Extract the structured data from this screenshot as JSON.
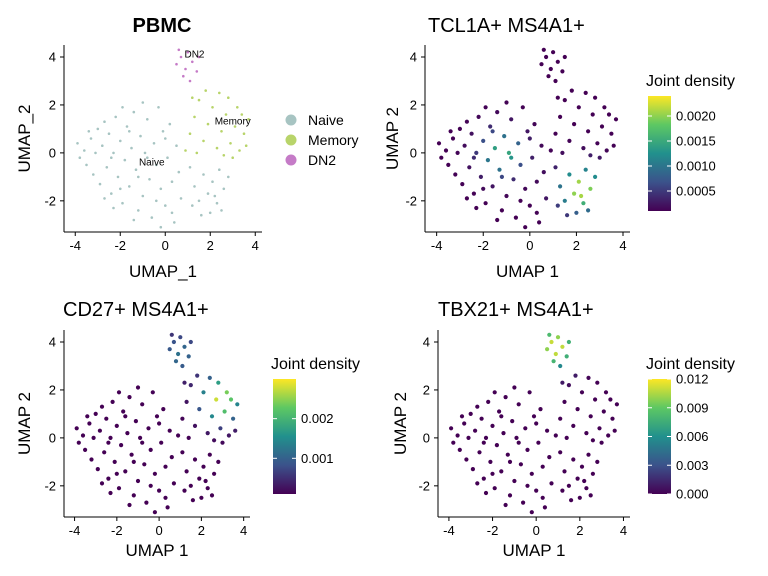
{
  "figure": {
    "palette": {
      "Naive": "#a7c4c2",
      "Memory": "#b8d46a",
      "DN2": "#c57bc7",
      "viridis": [
        "#440154",
        "#3b528b",
        "#21908d",
        "#5dc863",
        "#fde725"
      ]
    }
  },
  "chart_data": [
    {
      "type": "scatter",
      "title": "PBMC",
      "xlabel": "UMAP_1",
      "ylabel": "UMAP_2",
      "xlim": [
        -4.5,
        4.3
      ],
      "ylim": [
        -3.3,
        4.5
      ],
      "xticks": [
        -4,
        -2,
        0,
        2,
        4
      ],
      "yticks": [
        -2,
        0,
        2,
        4
      ],
      "color_by": "cluster",
      "legend": {
        "placement": "right",
        "entries": [
          {
            "name": "Naive",
            "color": "#a7c4c2"
          },
          {
            "name": "Memory",
            "color": "#b8d46a"
          },
          {
            "name": "DN2",
            "color": "#c57bc7"
          }
        ]
      },
      "cluster_labels": [
        {
          "text": "DN2",
          "x": 1.3,
          "y": 4.1
        },
        {
          "text": "Memory",
          "x": 3.0,
          "y": 1.3
        },
        {
          "text": "Naive",
          "x": -0.6,
          "y": -0.4
        }
      ],
      "points_ref": "umap_points"
    },
    {
      "type": "scatter",
      "title": "TCL1A+ MS4A1+",
      "xlabel": "UMAP 1",
      "ylabel": "UMAP 2",
      "xlim": [
        -4.5,
        4.3
      ],
      "ylim": [
        -3.3,
        4.5
      ],
      "xticks": [
        -4,
        -2,
        0,
        2,
        4
      ],
      "yticks": [
        -2,
        0,
        2,
        4
      ],
      "color_by": "joint_density",
      "colorbar": {
        "title": "Joint density",
        "range": [
          0.0001,
          0.0024
        ],
        "ticks": [
          0.0005,
          0.001,
          0.0015,
          0.002
        ],
        "tick_labels": [
          "0.0005",
          "0.0010",
          "0.0015",
          "0.0020"
        ]
      },
      "density_hotspots": [
        {
          "x": -1.2,
          "y": 0.0,
          "weight": 0.0016
        },
        {
          "x": 2.2,
          "y": -1.5,
          "weight": 0.0023
        }
      ],
      "points_ref": "umap_points"
    },
    {
      "type": "scatter",
      "title": "CD27+ MS4A1+",
      "xlabel": "UMAP 1",
      "ylabel": "UMAP 2",
      "xlim": [
        -4.5,
        4.3
      ],
      "ylim": [
        -3.3,
        4.5
      ],
      "xticks": [
        -4,
        -2,
        0,
        2,
        4
      ],
      "yticks": [
        -2,
        0,
        2,
        4
      ],
      "color_by": "joint_density",
      "colorbar": {
        "title": "Joint density",
        "range": [
          0.0001,
          0.003
        ],
        "ticks": [
          0.001,
          0.002
        ],
        "tick_labels": [
          "0.001",
          "0.002"
        ]
      },
      "density_hotspots": [
        {
          "x": 2.9,
          "y": 1.6,
          "weight": 0.0029
        },
        {
          "x": 1.0,
          "y": 3.5,
          "weight": 0.0012
        }
      ],
      "points_ref": "umap_points"
    },
    {
      "type": "scatter",
      "title": "TBX21+ MS4A1+",
      "xlabel": "UMAP 1",
      "ylabel": "UMAP 2",
      "xlim": [
        -4.5,
        4.3
      ],
      "ylim": [
        -3.3,
        4.5
      ],
      "xticks": [
        -4,
        -2,
        0,
        2,
        4
      ],
      "yticks": [
        -2,
        0,
        2,
        4
      ],
      "color_by": "joint_density",
      "colorbar": {
        "title": "Joint density",
        "range": [
          0.0,
          0.012
        ],
        "ticks": [
          0.0,
          0.003,
          0.006,
          0.009,
          0.012
        ],
        "tick_labels": [
          "0.000",
          "0.003",
          "0.006",
          "0.009",
          "0.012"
        ]
      },
      "density_hotspots": [
        {
          "x": 0.9,
          "y": 3.8,
          "weight": 0.012
        }
      ],
      "points_ref": "umap_points"
    }
  ],
  "umap_points": [
    [
      -3.8,
      -0.2,
      "Naive"
    ],
    [
      -3.6,
      0.1,
      "Naive"
    ],
    [
      -3.9,
      0.4,
      "Naive"
    ],
    [
      -3.5,
      -0.5,
      "Naive"
    ],
    [
      -3.3,
      0.6,
      "Naive"
    ],
    [
      -3.2,
      -0.9,
      "Naive"
    ],
    [
      -3.0,
      1.0,
      "Naive"
    ],
    [
      -3.1,
      0.0,
      "Naive"
    ],
    [
      -2.9,
      -1.3,
      "Naive"
    ],
    [
      -2.8,
      0.3,
      "Naive"
    ],
    [
      -2.7,
      1.3,
      "Naive"
    ],
    [
      -2.6,
      -0.6,
      "Naive"
    ],
    [
      -2.5,
      0.8,
      "Naive"
    ],
    [
      -2.4,
      -1.7,
      "Naive"
    ],
    [
      -2.3,
      0.0,
      "Naive"
    ],
    [
      -2.2,
      1.5,
      "Naive"
    ],
    [
      -2.1,
      -1.0,
      "Naive"
    ],
    [
      -2.0,
      0.5,
      "Naive"
    ],
    [
      -1.9,
      -2.1,
      "Naive"
    ],
    [
      -1.8,
      -0.3,
      "Naive"
    ],
    [
      -1.7,
      1.1,
      "Naive"
    ],
    [
      -1.6,
      -1.4,
      "Naive"
    ],
    [
      -1.5,
      0.2,
      "Naive"
    ],
    [
      -1.4,
      1.7,
      "Naive"
    ],
    [
      -1.3,
      -0.7,
      "Naive"
    ],
    [
      -1.2,
      -2.4,
      "Naive"
    ],
    [
      -1.1,
      0.7,
      "Naive"
    ],
    [
      -1.0,
      -1.8,
      "Naive"
    ],
    [
      -0.9,
      0.0,
      "Naive"
    ],
    [
      -0.8,
      1.4,
      "Naive"
    ],
    [
      -0.7,
      -1.1,
      "Naive"
    ],
    [
      -0.6,
      -2.7,
      "Naive"
    ],
    [
      -0.5,
      0.4,
      "Naive"
    ],
    [
      -0.4,
      -0.5,
      "Naive"
    ],
    [
      -0.3,
      1.9,
      "Naive"
    ],
    [
      -0.2,
      -1.5,
      "Naive"
    ],
    [
      -0.1,
      0.9,
      "Naive"
    ],
    [
      0.0,
      -2.2,
      "Naive"
    ],
    [
      0.1,
      -0.2,
      "Naive"
    ],
    [
      0.2,
      1.2,
      "Naive"
    ],
    [
      0.3,
      -1.2,
      "Naive"
    ],
    [
      0.4,
      -2.9,
      "Naive"
    ],
    [
      0.5,
      0.3,
      "Naive"
    ],
    [
      0.6,
      -0.8,
      "Naive"
    ],
    [
      0.7,
      -1.9,
      "Naive"
    ],
    [
      -2.4,
      -0.2,
      "Naive"
    ],
    [
      -2.0,
      -1.5,
      "Naive"
    ],
    [
      -1.6,
      0.9,
      "Naive"
    ],
    [
      -1.2,
      -1.0,
      "Naive"
    ],
    [
      -0.8,
      -0.2,
      "Naive"
    ],
    [
      -0.4,
      -2.0,
      "Naive"
    ],
    [
      0.0,
      0.6,
      "Naive"
    ],
    [
      -1.9,
      1.9,
      "Naive"
    ],
    [
      -1.0,
      2.1,
      "Naive"
    ],
    [
      -3.4,
      0.9,
      "Naive"
    ],
    [
      -2.7,
      -1.9,
      "Naive"
    ],
    [
      -1.4,
      -2.8,
      "Naive"
    ],
    [
      -0.2,
      -3.1,
      "Naive"
    ],
    [
      0.3,
      -2.5,
      "Naive"
    ],
    [
      -2.3,
      -2.3,
      "Naive"
    ],
    [
      1.1,
      -0.6,
      "Naive"
    ],
    [
      1.3,
      -1.4,
      "Naive"
    ],
    [
      1.5,
      -2.0,
      "Naive"
    ],
    [
      1.7,
      -0.9,
      "Naive"
    ],
    [
      1.9,
      -1.7,
      "Naive"
    ],
    [
      2.1,
      -1.2,
      "Naive"
    ],
    [
      2.3,
      -2.1,
      "Naive"
    ],
    [
      2.4,
      -0.7,
      "Naive"
    ],
    [
      2.6,
      -1.5,
      "Naive"
    ],
    [
      2.0,
      -2.5,
      "Naive"
    ],
    [
      1.6,
      -2.6,
      "Naive"
    ],
    [
      2.8,
      -1.0,
      "Naive"
    ],
    [
      2.2,
      -1.8,
      "Naive"
    ],
    [
      1.2,
      -2.2,
      "Naive"
    ],
    [
      2.5,
      -2.4,
      "Naive"
    ],
    [
      0.9,
      0.1,
      "Memory"
    ],
    [
      1.1,
      0.8,
      "Memory"
    ],
    [
      1.3,
      1.5,
      "Memory"
    ],
    [
      1.5,
      2.2,
      "Memory"
    ],
    [
      1.7,
      0.5,
      "Memory"
    ],
    [
      1.9,
      1.2,
      "Memory"
    ],
    [
      2.1,
      1.9,
      "Memory"
    ],
    [
      2.3,
      0.2,
      "Memory"
    ],
    [
      2.5,
      0.9,
      "Memory"
    ],
    [
      2.7,
      1.6,
      "Memory"
    ],
    [
      2.9,
      0.4,
      "Memory"
    ],
    [
      3.1,
      1.1,
      "Memory"
    ],
    [
      3.3,
      0.1,
      "Memory"
    ],
    [
      3.5,
      0.8,
      "Memory"
    ],
    [
      3.7,
      1.4,
      "Memory"
    ],
    [
      3.2,
      1.9,
      "Memory"
    ],
    [
      2.8,
      2.3,
      "Memory"
    ],
    [
      2.4,
      2.5,
      "Memory"
    ],
    [
      1.8,
      2.6,
      "Memory"
    ],
    [
      1.2,
      2.3,
      "Memory"
    ],
    [
      3.6,
      0.3,
      "Memory"
    ],
    [
      3.0,
      -0.2,
      "Memory"
    ],
    [
      2.6,
      -0.1,
      "Memory"
    ],
    [
      1.4,
      0.0,
      "Memory"
    ],
    [
      3.4,
      1.6,
      "Memory"
    ],
    [
      0.5,
      3.7,
      "DN2"
    ],
    [
      0.7,
      4.0,
      "DN2"
    ],
    [
      0.9,
      3.5,
      "DN2"
    ],
    [
      1.0,
      4.2,
      "DN2"
    ],
    [
      1.2,
      3.8,
      "DN2"
    ],
    [
      0.8,
      3.2,
      "DN2"
    ],
    [
      1.4,
      3.4,
      "DN2"
    ],
    [
      0.6,
      4.3,
      "DN2"
    ],
    [
      1.1,
      3.0,
      "DN2"
    ],
    [
      1.5,
      4.0,
      "DN2"
    ]
  ]
}
